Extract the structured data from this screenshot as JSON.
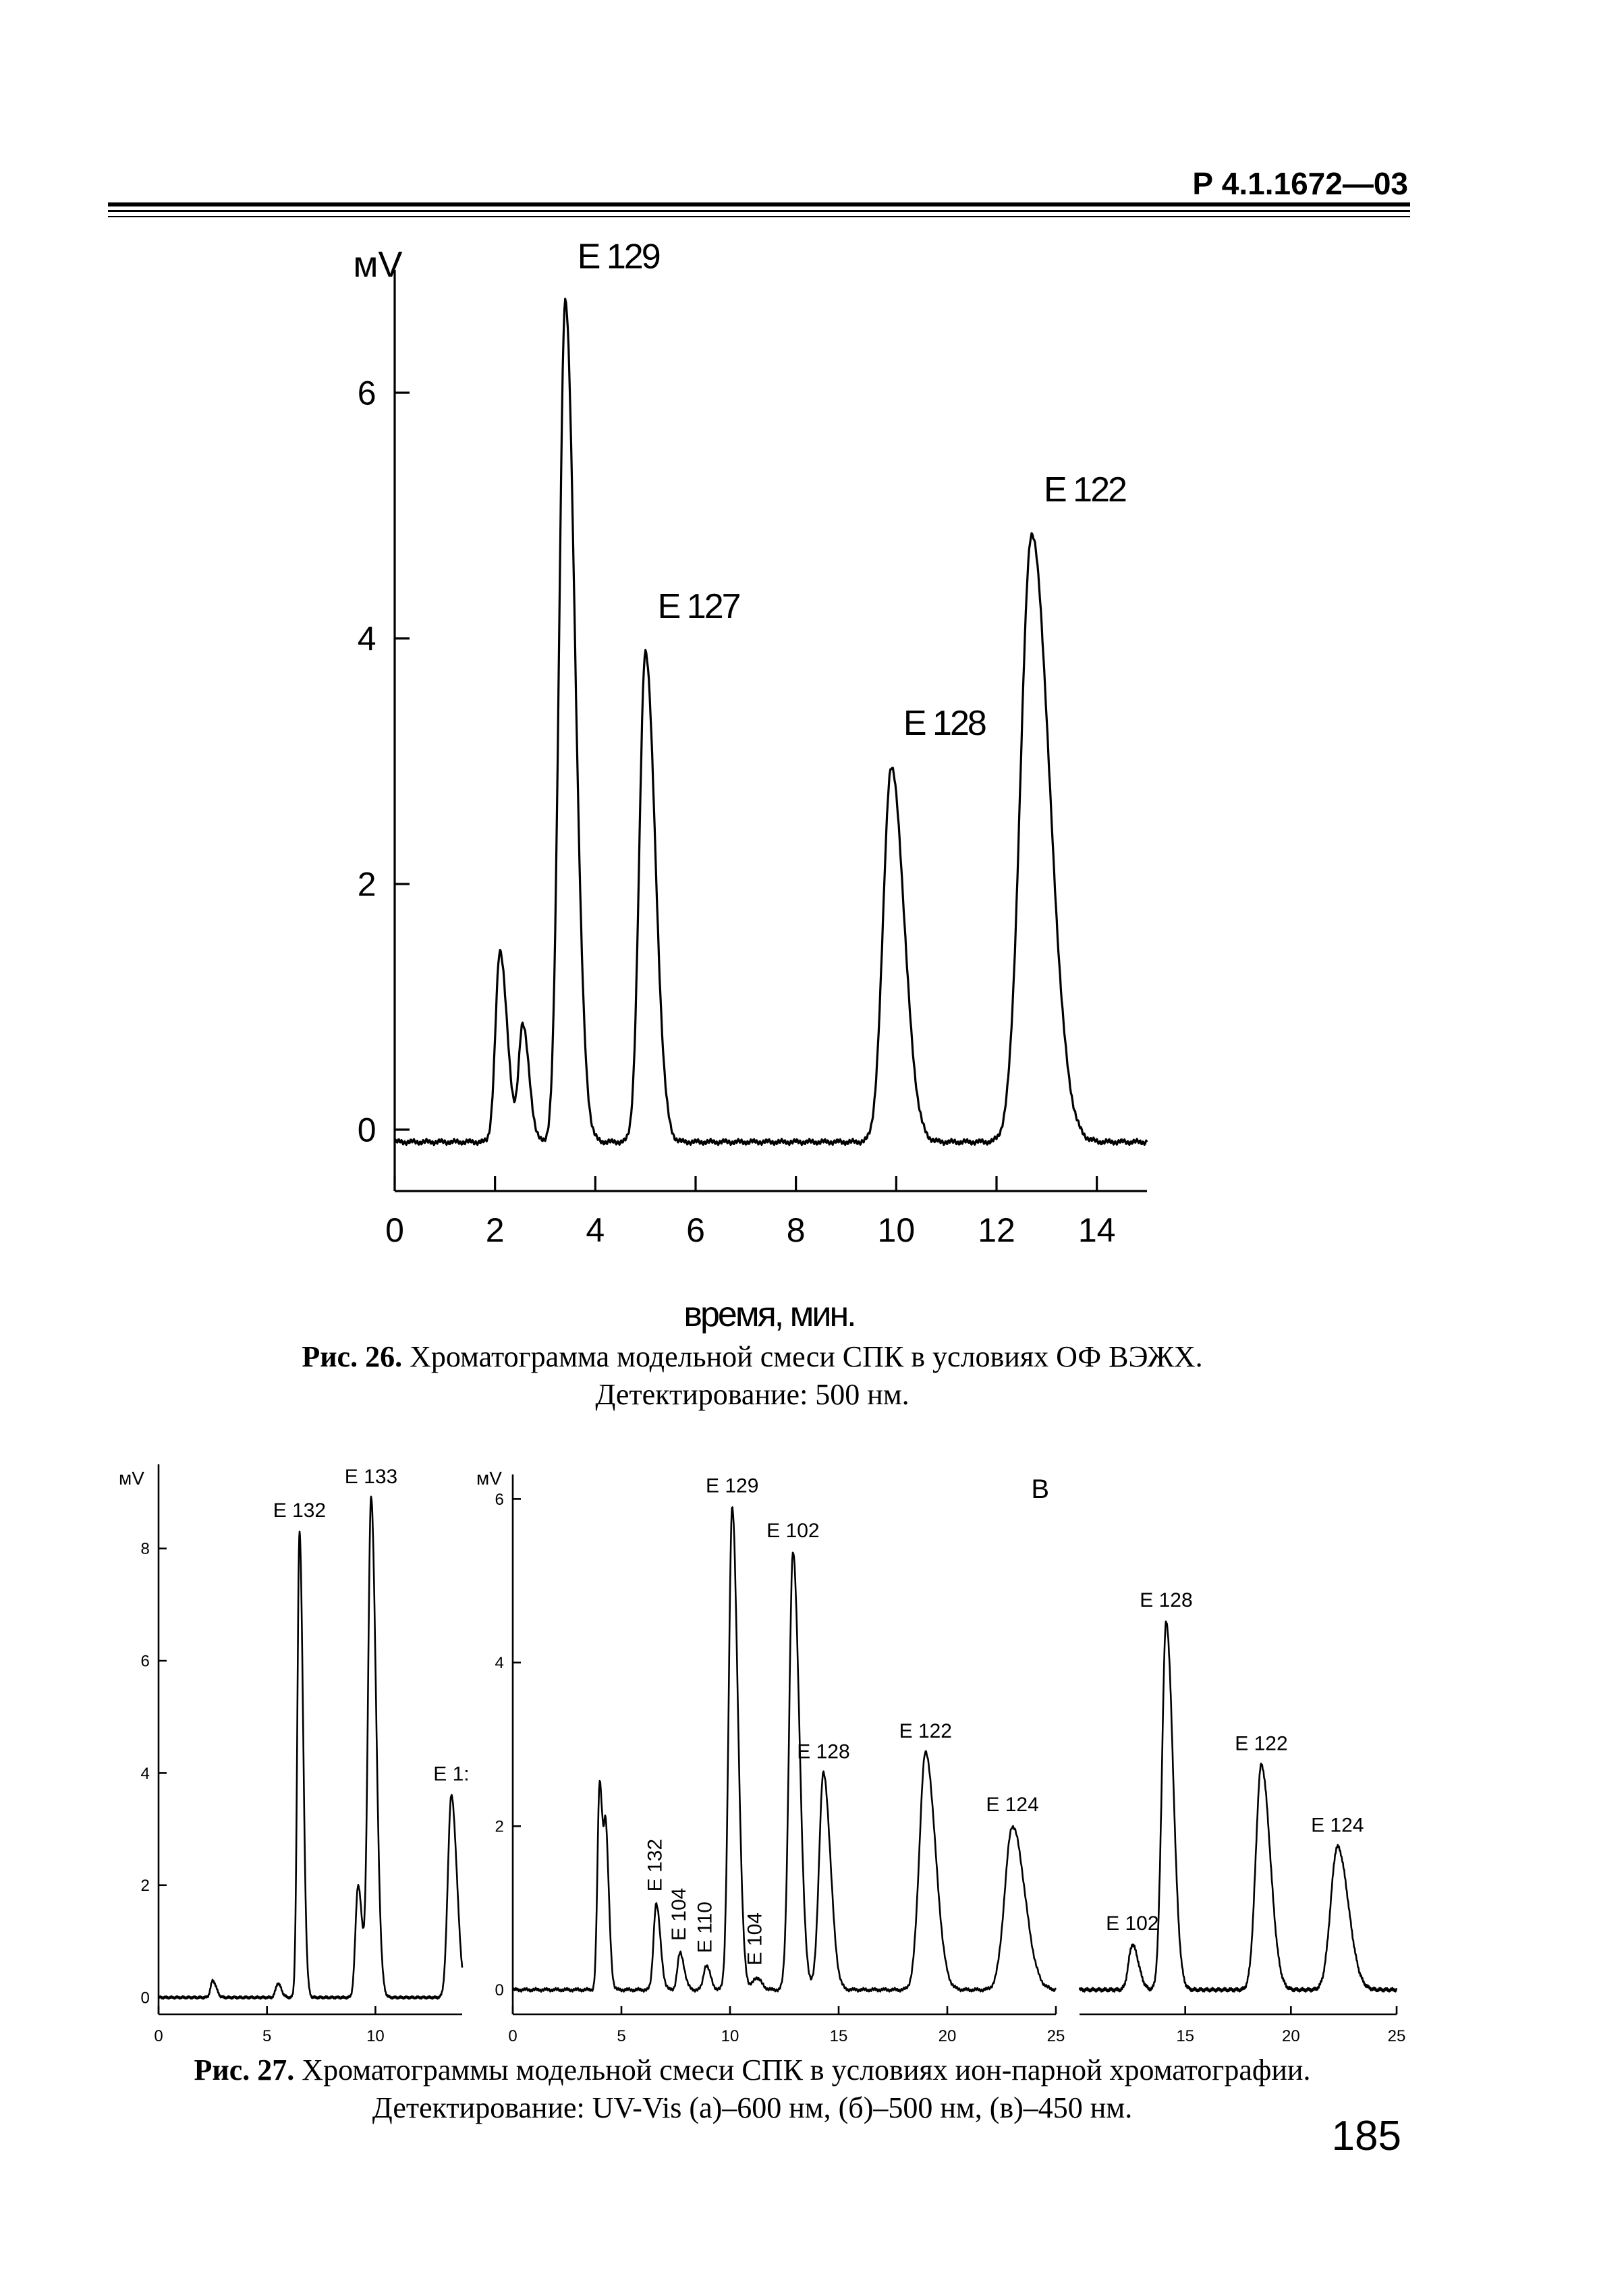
{
  "header": {
    "doc_code": "Р 4.1.1672—03"
  },
  "figure26": {
    "caption_num": "Рис. 26.",
    "caption_line1": "Хроматограмма модельной смеси СПК в условиях ОФ ВЭЖХ.",
    "caption_line2": "Детектирование: 500 нм."
  },
  "figure27": {
    "caption_num": "Рис. 27.",
    "caption_line1": "Хроматограммы модельной смеси СПК в условиях ион-парной хроматографии.",
    "caption_line2": "Детектирование: UV-Vis (а)–600 нм, (б)–500 нм, (в)–450 нм."
  },
  "page_number": "185",
  "chart_data": [
    {
      "type": "line",
      "id": "fig26",
      "ylabel": "мV",
      "xlabel": "время, мин.",
      "xlim": [
        0,
        15
      ],
      "ylim": [
        -0.5,
        7
      ],
      "xticks": [
        0,
        2,
        4,
        6,
        8,
        10,
        12,
        14
      ],
      "yticks": [
        0,
        2,
        4,
        6
      ],
      "baseline": -0.1,
      "peaks": [
        {
          "x": 2.1,
          "y": 1.55,
          "w": 0.09,
          "label": ""
        },
        {
          "x": 2.55,
          "y": 0.95,
          "w": 0.08,
          "label": ""
        },
        {
          "x": 3.4,
          "y": 6.85,
          "w": 0.12,
          "label": "E 129"
        },
        {
          "x": 5.0,
          "y": 4.0,
          "w": 0.12,
          "label": "E 127"
        },
        {
          "x": 9.9,
          "y": 3.05,
          "w": 0.16,
          "label": "E 128"
        },
        {
          "x": 12.7,
          "y": 4.95,
          "w": 0.22,
          "label": "E 122"
        }
      ]
    },
    {
      "type": "line",
      "id": "fig27a",
      "ylabel": "мV",
      "xlim": [
        0,
        14
      ],
      "ylim": [
        -0.3,
        9.5
      ],
      "xticks": [
        0,
        5,
        10
      ],
      "yticks": [
        0,
        2,
        4,
        6,
        8
      ],
      "baseline": 0.0,
      "peaks": [
        {
          "x": 2.5,
          "y": 0.3,
          "w": 0.1,
          "label": ""
        },
        {
          "x": 5.5,
          "y": 0.25,
          "w": 0.1,
          "label": ""
        },
        {
          "x": 6.5,
          "y": 8.3,
          "w": 0.1,
          "label": "E 132"
        },
        {
          "x": 9.2,
          "y": 2.0,
          "w": 0.12,
          "label": ""
        },
        {
          "x": 9.8,
          "y": 8.9,
          "w": 0.14,
          "label": "E 133"
        },
        {
          "x": 13.5,
          "y": 3.6,
          "w": 0.16,
          "label": "E 1:"
        }
      ]
    },
    {
      "type": "line",
      "id": "fig27b",
      "ylabel": "мV",
      "xlim": [
        0,
        25
      ],
      "ylim": [
        -0.3,
        6.3
      ],
      "xticks": [
        0,
        5,
        10,
        15,
        20,
        25
      ],
      "yticks": [
        0,
        2,
        4,
        6
      ],
      "baseline": 0.0,
      "peaks": [
        {
          "x": 4.0,
          "y": 2.55,
          "w": 0.1,
          "label": ""
        },
        {
          "x": 4.3,
          "y": 1.6,
          "w": 0.09,
          "label": ""
        },
        {
          "x": 6.6,
          "y": 1.05,
          "w": 0.12,
          "label": "E 132"
        },
        {
          "x": 7.7,
          "y": 0.45,
          "w": 0.12,
          "label": "E 104"
        },
        {
          "x": 8.9,
          "y": 0.3,
          "w": 0.12,
          "label": "E 110"
        },
        {
          "x": 10.1,
          "y": 5.9,
          "w": 0.16,
          "label": "E 129"
        },
        {
          "x": 11.2,
          "y": 0.15,
          "w": 0.15,
          "label": "E 104"
        },
        {
          "x": 12.9,
          "y": 5.35,
          "w": 0.18,
          "label": "E 102"
        },
        {
          "x": 14.3,
          "y": 2.65,
          "w": 0.2,
          "label": "E 128"
        },
        {
          "x": 19.0,
          "y": 2.9,
          "w": 0.28,
          "label": "E 122"
        },
        {
          "x": 23.0,
          "y": 2.0,
          "w": 0.35,
          "label": "E 124"
        }
      ],
      "panel_label": "B"
    },
    {
      "type": "line",
      "id": "fig27c",
      "xlim": [
        10,
        25
      ],
      "ylim": [
        -0.3,
        6.3
      ],
      "xticks": [
        15,
        20,
        25
      ],
      "yticks": [],
      "baseline": 0.0,
      "peaks": [
        {
          "x": 12.5,
          "y": 0.55,
          "w": 0.18,
          "label": "E 102"
        },
        {
          "x": 14.1,
          "y": 4.5,
          "w": 0.2,
          "label": "E 128"
        },
        {
          "x": 18.6,
          "y": 2.75,
          "w": 0.26,
          "label": "E 122"
        },
        {
          "x": 22.2,
          "y": 1.75,
          "w": 0.32,
          "label": "E 124"
        }
      ]
    }
  ]
}
